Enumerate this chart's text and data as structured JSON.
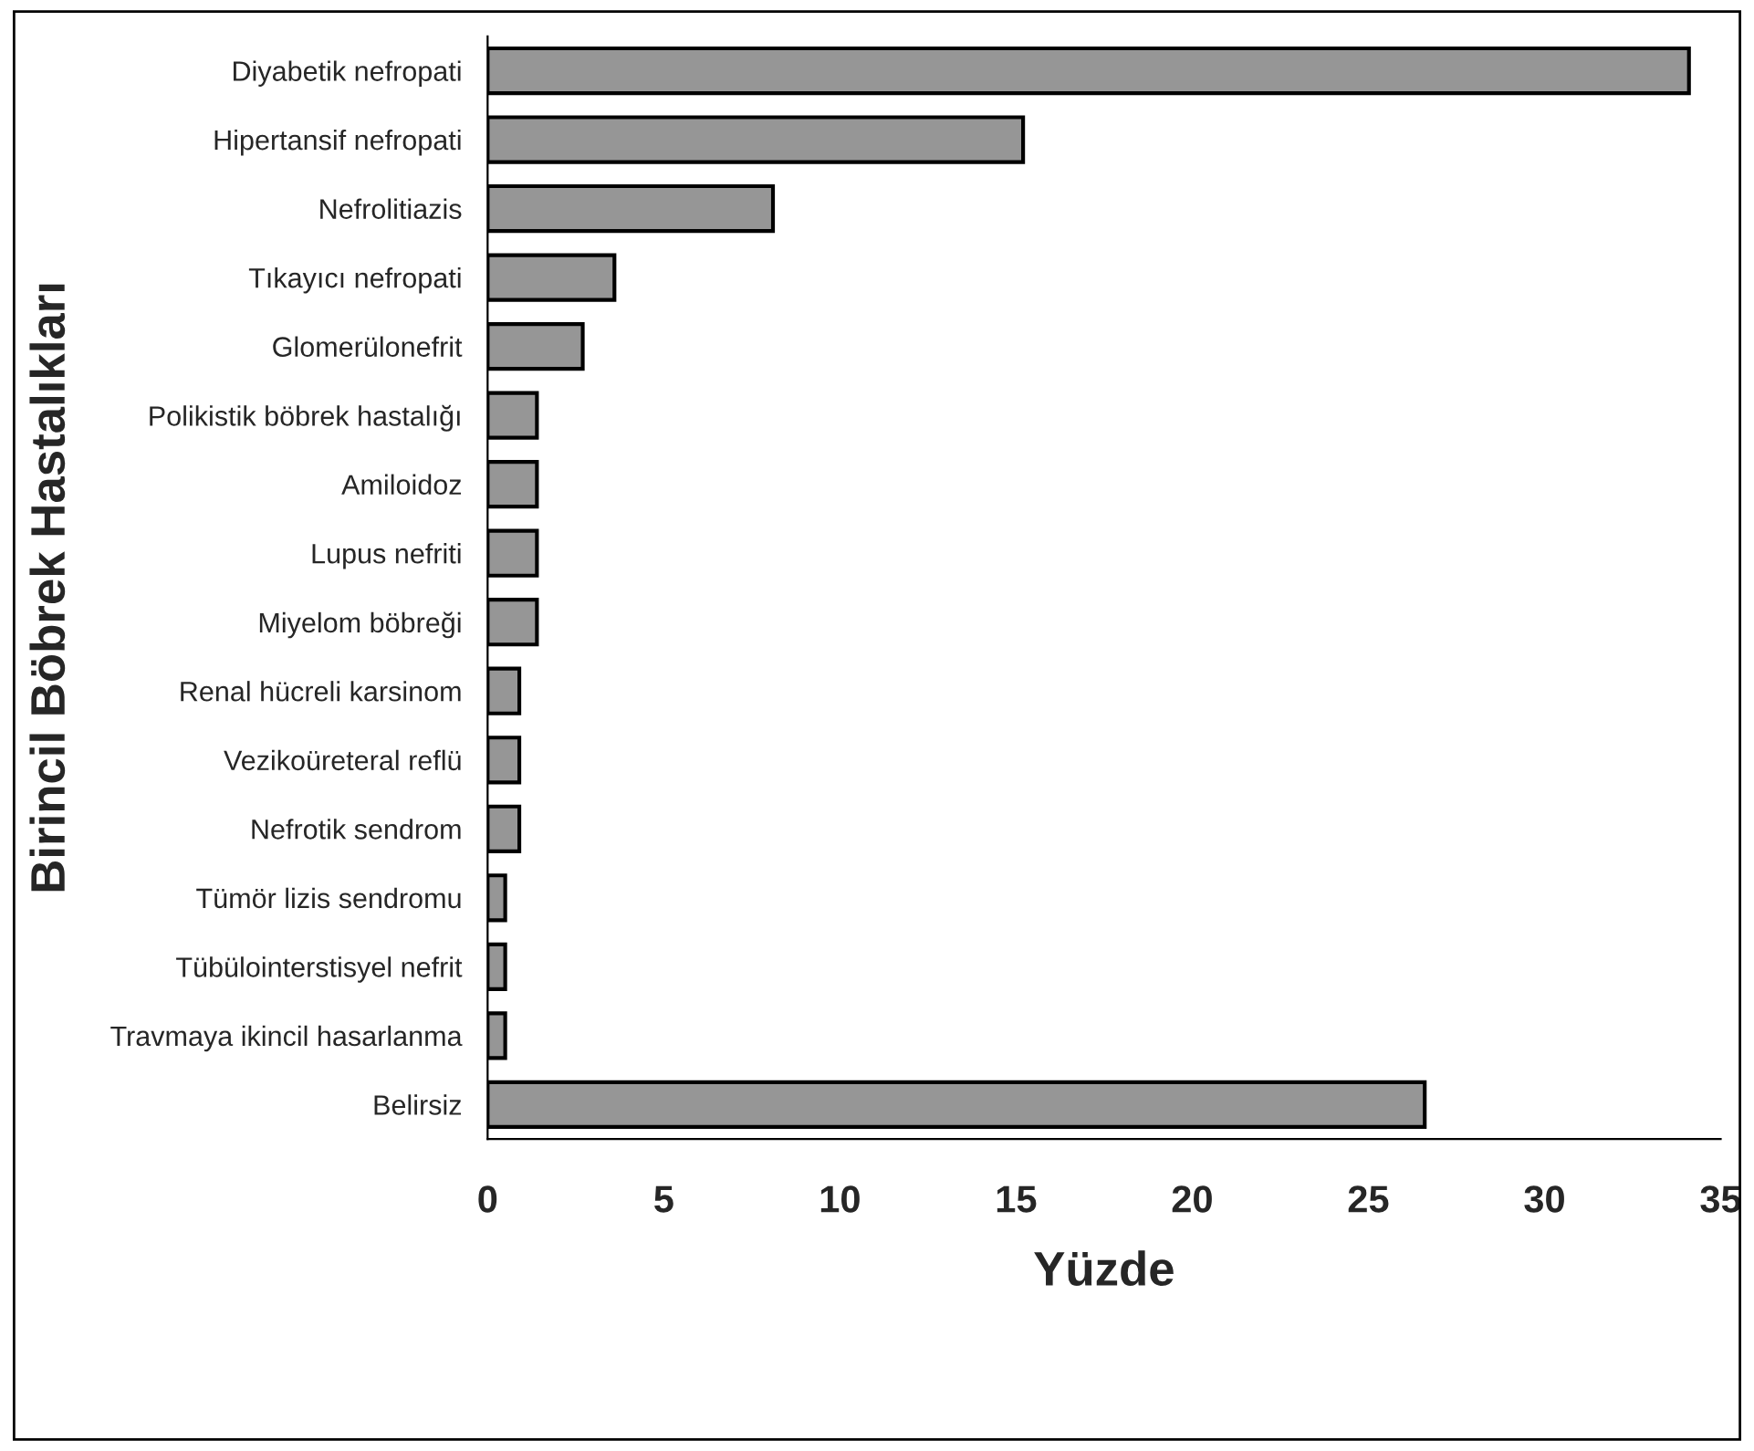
{
  "chart_data": {
    "type": "bar",
    "orientation": "horizontal",
    "xlabel": "Yüzde",
    "ylabel": "Birincil Böbrek Hastalıkları",
    "categories": [
      "Diyabetik nefropati",
      "Hipertansif nefropati",
      "Nefrolitiazis",
      "Tıkayıcı nefropati",
      "Glomerülonefrit",
      "Polikistik böbrek hastalığı",
      "Amiloidoz",
      "Lupus nefriti",
      "Miyelom böbreği",
      "Renal hücreli karsinom",
      "Vezikoüreteral reflü",
      "Nefrotik sendrom",
      "Tümör lizis sendromu",
      "Tübülointerstisyel nefrit",
      "Travmaya ikincil hasarlanma",
      "Belirsiz"
    ],
    "values": [
      34.1,
      15.2,
      8.1,
      3.6,
      2.7,
      1.4,
      1.4,
      1.4,
      1.4,
      0.9,
      0.9,
      0.9,
      0.5,
      0.5,
      0.5,
      26.6
    ],
    "color": "#969696",
    "xlim": [
      0,
      35
    ],
    "xticks": [
      0,
      5,
      10,
      15,
      20,
      25,
      30,
      35
    ],
    "grid": false,
    "legend": false
  }
}
